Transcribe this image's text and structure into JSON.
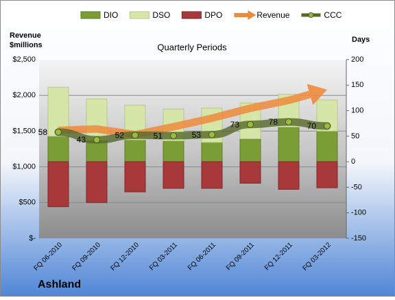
{
  "chart_data": {
    "type": "bar",
    "subtitle": "Quarterly Periods",
    "company": "Ashland",
    "y_label_lines": [
      "Revenue",
      "$millions"
    ],
    "y2_label": "Days",
    "categories": [
      "FQ 06-2010",
      "FQ 09-2010",
      "FQ 12-2010",
      "FQ 03-2011",
      "FQ 06-2011",
      "FQ 09-2011",
      "FQ 12-2011",
      "FQ 03-2012"
    ],
    "series": [
      {
        "name": "DIO",
        "type": "bar",
        "axis": "y2",
        "color": "#7a9e35",
        "values": [
          50,
          42,
          43,
          41,
          38,
          45,
          68,
          60
        ]
      },
      {
        "name": "DSO",
        "type": "bar",
        "axis": "y2",
        "color": "#d6e6a8",
        "values": [
          96,
          81,
          68,
          62,
          67,
          70,
          64,
          61
        ]
      },
      {
        "name": "DPO",
        "type": "bar",
        "axis": "y2",
        "color": "#a8393b",
        "values": [
          -88,
          -80,
          -59,
          -52,
          -52,
          -42,
          -54,
          -51
        ]
      },
      {
        "name": "Revenue",
        "type": "arrow",
        "axis": "y",
        "color": "#ee8a3c",
        "values": [
          1510,
          1530,
          1450,
          1560,
          1680,
          1820,
          1930,
          2080
        ]
      },
      {
        "name": "CCC",
        "type": "line",
        "axis": "y2",
        "color": "#56682a",
        "values": [
          58,
          43,
          52,
          51,
          53,
          73,
          78,
          70
        ]
      }
    ],
    "ylim": [
      0,
      2500
    ],
    "yticks": [
      {
        "value": 0,
        "label": "$-"
      },
      {
        "value": 500,
        "label": "$500"
      },
      {
        "value": 1000,
        "label": "$1,000"
      },
      {
        "value": 1500,
        "label": "$1,500"
      },
      {
        "value": 2000,
        "label": "$2,000"
      },
      {
        "value": 2500,
        "label": "$2,500"
      }
    ],
    "y2lim": [
      -150,
      200
    ],
    "y2ticks": [
      -150,
      -100,
      -50,
      0,
      50,
      100,
      150,
      200
    ],
    "grid": true
  }
}
